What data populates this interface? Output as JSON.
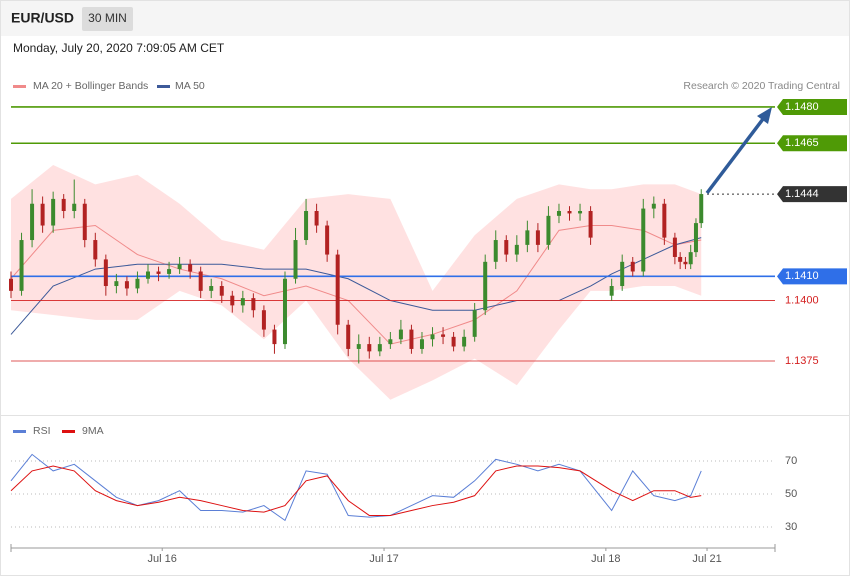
{
  "header": {
    "symbol": "EUR/USD",
    "interval": "30 MIN",
    "timestamp": "Monday, July 20, 2020 7:09:05 AM CET",
    "credit": "Research © 2020 Trading Central"
  },
  "chart_data": [
    {
      "type": "candlestick",
      "xlim": [
        0,
        145
      ],
      "ylim": [
        1.13527,
        1.14994
      ],
      "up_color": "#3c8a2e",
      "down_color": "#b22222",
      "x": [
        0,
        2,
        4,
        6,
        8,
        10,
        12,
        14,
        16,
        18,
        20,
        22,
        24,
        26,
        28,
        30,
        32,
        34,
        36,
        38,
        40,
        42,
        44,
        46,
        48,
        50,
        52,
        54,
        56,
        58,
        60,
        62,
        64,
        66,
        68,
        70,
        72,
        74,
        76,
        78,
        80,
        82,
        84,
        86,
        88,
        90,
        92,
        94,
        96,
        98,
        100,
        102,
        104,
        106,
        108,
        110,
        114,
        116,
        118,
        120,
        122,
        124,
        126,
        127,
        128,
        129,
        130,
        131
      ],
      "open": [
        1.1409,
        1.1404,
        1.1425,
        1.144,
        1.1431,
        1.1442,
        1.1437,
        1.144,
        1.1425,
        1.1417,
        1.1406,
        1.1408,
        1.1405,
        1.1409,
        1.1412,
        1.1411,
        1.1413,
        1.1415,
        1.1412,
        1.1404,
        1.1406,
        1.1402,
        1.1398,
        1.1401,
        1.1396,
        1.1388,
        1.1382,
        1.1409,
        1.1425,
        1.1437,
        1.1431,
        1.1419,
        1.139,
        1.138,
        1.1382,
        1.1379,
        1.1382,
        1.1384,
        1.1388,
        1.138,
        1.1384,
        1.1386,
        1.1385,
        1.1381,
        1.1385,
        1.1396,
        1.1416,
        1.1425,
        1.1419,
        1.1423,
        1.1429,
        1.1423,
        1.1435,
        1.1437,
        1.1436,
        1.1437,
        1.1402,
        1.1406,
        1.1416,
        1.1412,
        1.1438,
        1.144,
        1.1426,
        1.1418,
        1.1416,
        1.1415,
        1.142,
        1.1432
      ],
      "high": [
        1.1412,
        1.1428,
        1.1446,
        1.1443,
        1.1445,
        1.1444,
        1.145,
        1.1442,
        1.1428,
        1.1419,
        1.1411,
        1.141,
        1.1412,
        1.1415,
        1.1414,
        1.1416,
        1.1418,
        1.1417,
        1.1414,
        1.1409,
        1.1408,
        1.1404,
        1.1404,
        1.1403,
        1.1398,
        1.139,
        1.1412,
        1.143,
        1.1442,
        1.144,
        1.1433,
        1.1421,
        1.1392,
        1.1386,
        1.1385,
        1.1385,
        1.1387,
        1.1392,
        1.139,
        1.1387,
        1.1389,
        1.1389,
        1.1387,
        1.1388,
        1.1399,
        1.1419,
        1.1429,
        1.1427,
        1.1427,
        1.1433,
        1.1432,
        1.1439,
        1.144,
        1.1439,
        1.144,
        1.1439,
        1.1409,
        1.1419,
        1.1418,
        1.1442,
        1.1443,
        1.1442,
        1.1428,
        1.142,
        1.1418,
        1.1423,
        1.1434,
        1.1446
      ],
      "low": [
        1.1401,
        1.1402,
        1.1422,
        1.1428,
        1.1428,
        1.1434,
        1.1434,
        1.1422,
        1.1414,
        1.1402,
        1.1403,
        1.1402,
        1.1403,
        1.1407,
        1.1408,
        1.1409,
        1.1411,
        1.1409,
        1.1401,
        1.1401,
        1.1399,
        1.1395,
        1.1395,
        1.1393,
        1.1385,
        1.1378,
        1.138,
        1.1407,
        1.1423,
        1.1428,
        1.1416,
        1.1386,
        1.1377,
        1.1374,
        1.1376,
        1.1377,
        1.138,
        1.1382,
        1.1378,
        1.1378,
        1.1381,
        1.1382,
        1.1379,
        1.1379,
        1.1383,
        1.1394,
        1.1413,
        1.1416,
        1.1416,
        1.142,
        1.142,
        1.1421,
        1.1432,
        1.1433,
        1.1433,
        1.1423,
        1.14,
        1.1404,
        1.141,
        1.141,
        1.1434,
        1.1423,
        1.1415,
        1.1413,
        1.1413,
        1.1413,
        1.1418,
        1.143
      ],
      "close": [
        1.1404,
        1.1425,
        1.144,
        1.1431,
        1.1442,
        1.1437,
        1.144,
        1.1425,
        1.1417,
        1.1406,
        1.1408,
        1.1405,
        1.1409,
        1.1412,
        1.1411,
        1.1413,
        1.1415,
        1.1412,
        1.1404,
        1.1406,
        1.1402,
        1.1398,
        1.1401,
        1.1396,
        1.1388,
        1.1382,
        1.1409,
        1.1425,
        1.1437,
        1.1431,
        1.1419,
        1.139,
        1.138,
        1.1382,
        1.1379,
        1.1382,
        1.1384,
        1.1388,
        1.138,
        1.1384,
        1.1386,
        1.1385,
        1.1381,
        1.1385,
        1.1396,
        1.1416,
        1.1425,
        1.1419,
        1.1423,
        1.1429,
        1.1423,
        1.1435,
        1.1437,
        1.1436,
        1.1437,
        1.1426,
        1.1406,
        1.1416,
        1.1412,
        1.1438,
        1.144,
        1.1426,
        1.1418,
        1.1416,
        1.1415,
        1.142,
        1.1432,
        1.1444
      ],
      "series": [
        {
          "name": "MA 20 + Bollinger Bands",
          "color": "#f08a8a",
          "band_color": "#ffdcdc",
          "x": [
            0,
            8,
            16,
            24,
            32,
            40,
            48,
            56,
            64,
            72,
            80,
            88,
            96,
            104,
            110,
            114,
            120,
            126,
            131
          ],
          "values": [
            1.1409,
            1.1429,
            1.1431,
            1.1419,
            1.1413,
            1.1409,
            1.1402,
            1.1406,
            1.14,
            1.1382,
            1.1386,
            1.1392,
            1.1404,
            1.1429,
            1.1431,
            1.1431,
            1.1429,
            1.1423,
            1.1425
          ],
          "upper": [
            1.1442,
            1.1456,
            1.1448,
            1.1452,
            1.144,
            1.1425,
            1.1421,
            1.1442,
            1.1444,
            1.1442,
            1.1404,
            1.1427,
            1.1442,
            1.1448,
            1.1446,
            1.1446,
            1.1448,
            1.1448,
            1.1444
          ],
          "lower": [
            1.1396,
            1.1394,
            1.1392,
            1.1392,
            1.1404,
            1.1398,
            1.1384,
            1.14,
            1.1376,
            1.1359,
            1.1367,
            1.1376,
            1.1365,
            1.1388,
            1.1404,
            1.1404,
            1.1406,
            1.1406,
            1.1402
          ]
        },
        {
          "name": "MA 50",
          "color": "#3d5a99",
          "x": [
            0,
            8,
            16,
            24,
            32,
            40,
            48,
            56,
            64,
            72,
            80,
            88,
            96,
            104,
            110,
            114,
            120,
            126,
            131
          ],
          "values": [
            1.1386,
            1.1406,
            1.1413,
            1.1415,
            1.1415,
            1.1415,
            1.1413,
            1.1413,
            1.1409,
            1.14,
            1.1396,
            1.1396,
            1.14,
            1.14,
            1.1406,
            1.1411,
            1.1417,
            1.1423,
            1.1426
          ]
        }
      ],
      "levels": [
        {
          "value": 1.148,
          "label": "1.1480",
          "color": "#4f9a06",
          "style": "tag"
        },
        {
          "value": 1.1465,
          "label": "1.1465",
          "color": "#4f9a06",
          "style": "tag"
        },
        {
          "value": 1.1444,
          "label": "1.1444",
          "color": "#333333",
          "style": "dotted-tag"
        },
        {
          "value": 1.141,
          "label": "1.1410",
          "color": "#2f6fe8",
          "style": "tag"
        },
        {
          "value": 1.14,
          "label": "1.1400",
          "color": "#d42020",
          "style": "text"
        },
        {
          "value": 1.1375,
          "label": "1.1375",
          "color": "#d42020",
          "style": "text"
        }
      ]
    },
    {
      "type": "line",
      "xlim": [
        0,
        145
      ],
      "ylim": [
        19.1,
        79.7
      ],
      "yticks": [
        30,
        50,
        70
      ],
      "grid": true,
      "xticks": [
        {
          "value": 28.7,
          "label": "Jul 16"
        },
        {
          "value": 70.8,
          "label": "Jul 17"
        },
        {
          "value": 112.9,
          "label": "Jul 18"
        },
        {
          "value": 132.1,
          "label": "Jul 21"
        }
      ],
      "x": [
        0,
        4,
        8,
        12,
        16,
        20,
        24,
        28,
        32,
        36,
        40,
        44,
        48,
        52,
        56,
        60,
        64,
        68,
        72,
        76,
        80,
        84,
        88,
        92,
        96,
        100,
        104,
        108,
        114,
        118,
        122,
        126,
        129,
        131
      ],
      "series": [
        {
          "name": "RSI",
          "color": "#5b7fd6",
          "values": [
            58,
            74,
            64,
            68,
            58,
            48,
            43,
            46,
            52,
            40,
            40,
            39,
            43,
            34,
            64,
            62,
            37,
            36,
            37,
            43,
            49,
            48,
            58,
            71,
            68,
            64,
            68,
            64,
            40,
            64,
            49,
            46,
            49,
            64
          ]
        },
        {
          "name": "9MA",
          "color": "#dd1111",
          "values": [
            52,
            64,
            67,
            64,
            52,
            46,
            43,
            45,
            48,
            46,
            43,
            40,
            39,
            43,
            58,
            61,
            46,
            37,
            37,
            40,
            43,
            45,
            49,
            64,
            67,
            67,
            66,
            64,
            52,
            46,
            52,
            52,
            48,
            49
          ]
        }
      ]
    }
  ]
}
